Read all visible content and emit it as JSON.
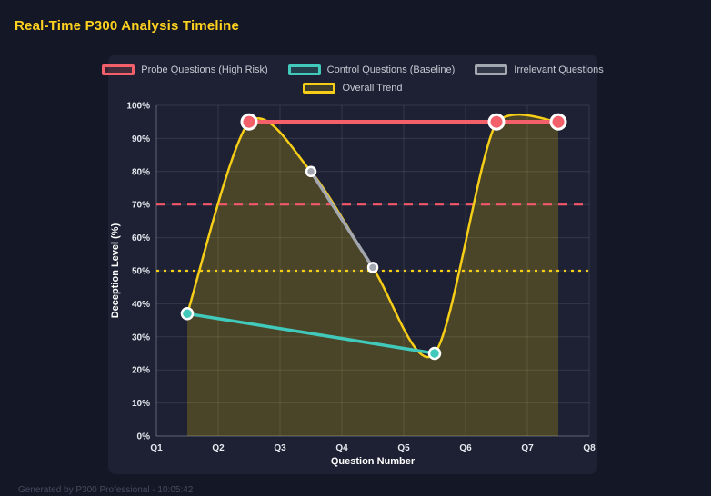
{
  "page": {
    "title": "Real-Time P300 Analysis Timeline",
    "footer": "Generated by P300 Professional - 10:05:42"
  },
  "colors": {
    "background": "#141726",
    "card": "#1d2133",
    "title": "#ffd21f",
    "grid": "rgba(255,255,255,0.10)",
    "axis_line": "rgba(255,255,255,0.30)",
    "tick_text": "#e8eaf1",
    "legend_text": "#c6c9d2",
    "point_border": "#ffffff"
  },
  "chart_data": {
    "type": "line",
    "title": "Real-Time P300 Analysis Timeline",
    "xlabel": "Question Number",
    "ylabel": "Deception Level (%)",
    "x_ticks": [
      "Q1",
      "Q2",
      "Q3",
      "Q4",
      "Q5",
      "Q6",
      "Q7",
      "Q8"
    ],
    "x_range": [
      1,
      8
    ],
    "ylim": [
      0,
      100
    ],
    "y_tick_step": 10,
    "y_ticks": [
      "0%",
      "10%",
      "20%",
      "30%",
      "40%",
      "50%",
      "60%",
      "70%",
      "80%",
      "90%",
      "100%"
    ],
    "grid": true,
    "legend_position": "top",
    "series": [
      {
        "name": "Probe Questions (High Risk)",
        "color": "#f3606a",
        "legend_fill": "rgba(243,96,106,0.18)",
        "x": [
          2.5,
          6.5,
          7.5
        ],
        "y": [
          95,
          95,
          95
        ],
        "line_width": 4.5,
        "point_radius": 8,
        "point_border": 3,
        "smooth": false
      },
      {
        "name": "Control Questions (Baseline)",
        "color": "#41c9bb",
        "legend_fill": "rgba(65,201,187,0.18)",
        "x": [
          1.5,
          5.5
        ],
        "y": [
          37,
          25
        ],
        "line_width": 3.5,
        "point_radius": 6,
        "point_border": 2.5,
        "smooth": false
      },
      {
        "name": "Irrelevant Questions",
        "color": "#a3a7b0",
        "legend_fill": "rgba(163,167,176,0.18)",
        "x": [
          3.5,
          4.5
        ],
        "y": [
          80,
          51
        ],
        "line_width": 3.5,
        "point_radius": 5,
        "point_border": 2.5,
        "smooth": false
      },
      {
        "name": "Overall Trend",
        "color": "#f7ce17",
        "legend_fill": "rgba(255,215,0,0.15)",
        "x": [
          1.5,
          2.5,
          3.5,
          4.5,
          5.5,
          6.5,
          7.5
        ],
        "y": [
          37,
          95,
          80,
          51,
          25,
          95,
          95
        ],
        "line_width": 2.5,
        "point_radius": 0,
        "point_border": 0,
        "smooth": true,
        "fill": "rgba(255,215,0,0.20)"
      }
    ],
    "thresholds": [
      {
        "y": 70,
        "color": "#f2576b",
        "dash": [
          10,
          7
        ]
      },
      {
        "y": 50,
        "color": "#f7ce17",
        "dash": [
          3,
          5
        ]
      }
    ]
  }
}
